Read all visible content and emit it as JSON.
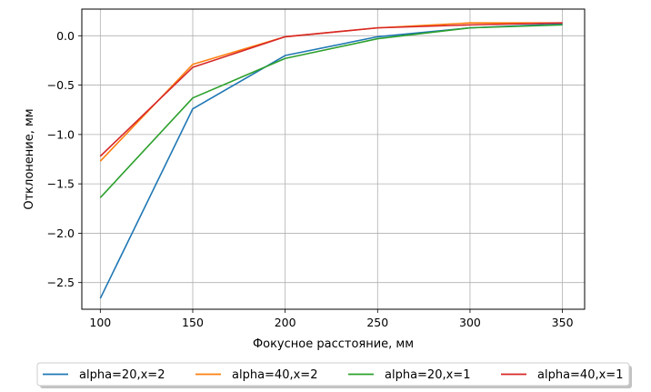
{
  "chart_data": {
    "type": "line",
    "title": "",
    "xlabel": "Фокусное расстояние, мм",
    "ylabel": "Отклонение, мм",
    "x": [
      100,
      150,
      200,
      250,
      300,
      350
    ],
    "xlim": [
      90,
      362
    ],
    "ylim": [
      -2.77,
      0.27
    ],
    "xticks": [
      "100",
      "150",
      "200",
      "250",
      "300",
      "350"
    ],
    "yticks": [
      "0.0",
      "−0.5",
      "−1.0",
      "−1.5",
      "−2.0",
      "−2.5"
    ],
    "ytick_values": [
      0.0,
      -0.5,
      -1.0,
      -1.5,
      -2.0,
      -2.5
    ],
    "grid": true,
    "legend_position": "bottom-center",
    "series": [
      {
        "name": "alpha=20,x=2",
        "color": "#1f77b4",
        "values": [
          -2.66,
          -0.74,
          -0.2,
          -0.01,
          0.08,
          0.12
        ]
      },
      {
        "name": "alpha=40,x=2",
        "color": "#ff7f0e",
        "values": [
          -1.27,
          -0.29,
          -0.01,
          0.08,
          0.13,
          0.13
        ]
      },
      {
        "name": "alpha=20,x=1",
        "color": "#2ca02c",
        "values": [
          -1.64,
          -0.63,
          -0.23,
          -0.03,
          0.08,
          0.11
        ]
      },
      {
        "name": "alpha=40,x=1",
        "color": "#d62728",
        "values": [
          -1.22,
          -0.32,
          -0.01,
          0.08,
          0.11,
          0.13
        ]
      }
    ]
  }
}
